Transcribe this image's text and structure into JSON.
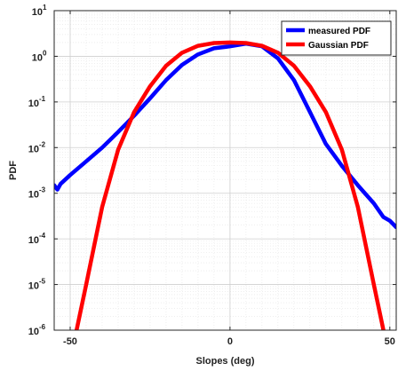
{
  "chart_data": {
    "type": "line",
    "xlabel": "Slopes (deg)",
    "ylabel": "PDF",
    "xlim": [
      -55,
      52
    ],
    "ylim": [
      1e-06,
      10
    ],
    "yscale": "log",
    "grid": "on (major and minor, dotted)",
    "legend_position": "top-right",
    "x_ticks": [
      {
        "value": -50,
        "label": "-50"
      },
      {
        "value": 0,
        "label": "0"
      },
      {
        "value": 50,
        "label": "50"
      }
    ],
    "y_ticks": [
      {
        "value": 10,
        "base": "10",
        "exp": "1"
      },
      {
        "value": 1,
        "base": "10",
        "exp": "0"
      },
      {
        "value": 0.1,
        "base": "10",
        "exp": "-1"
      },
      {
        "value": 0.01,
        "base": "10",
        "exp": "-2"
      },
      {
        "value": 0.001,
        "base": "10",
        "exp": "-3"
      },
      {
        "value": 0.0001,
        "base": "10",
        "exp": "-4"
      },
      {
        "value": 1e-05,
        "base": "10",
        "exp": "-5"
      },
      {
        "value": 1e-06,
        "base": "10",
        "exp": "-6"
      }
    ],
    "series": [
      {
        "name": "measured PDF",
        "color": "#0000ff",
        "x": [
          -55,
          -54,
          -53,
          -50,
          -45,
          -40,
          -35,
          -30,
          -25,
          -20,
          -15,
          -10,
          -5,
          0,
          5,
          10,
          15,
          20,
          25,
          30,
          35,
          40,
          45,
          48,
          50,
          52
        ],
        "y": [
          0.0015,
          0.0012,
          0.0016,
          0.0025,
          0.005,
          0.01,
          0.022,
          0.05,
          0.12,
          0.3,
          0.65,
          1.1,
          1.5,
          1.65,
          1.9,
          1.65,
          0.9,
          0.3,
          0.06,
          0.012,
          0.004,
          0.0015,
          0.0006,
          0.0003,
          0.00025,
          0.00018
        ]
      },
      {
        "name": "Gaussian PDF",
        "color": "#ff0000",
        "x": [
          -48,
          -45,
          -40,
          -35,
          -30,
          -25,
          -20,
          -15,
          -10,
          -5,
          0,
          5,
          10,
          15,
          20,
          25,
          30,
          35,
          40,
          45,
          48
        ],
        "y": [
          1e-06,
          1e-05,
          0.0005,
          0.009,
          0.06,
          0.22,
          0.62,
          1.2,
          1.7,
          1.95,
          2.0,
          1.95,
          1.7,
          1.2,
          0.62,
          0.22,
          0.06,
          0.009,
          0.0005,
          1e-05,
          1e-06
        ]
      }
    ]
  }
}
